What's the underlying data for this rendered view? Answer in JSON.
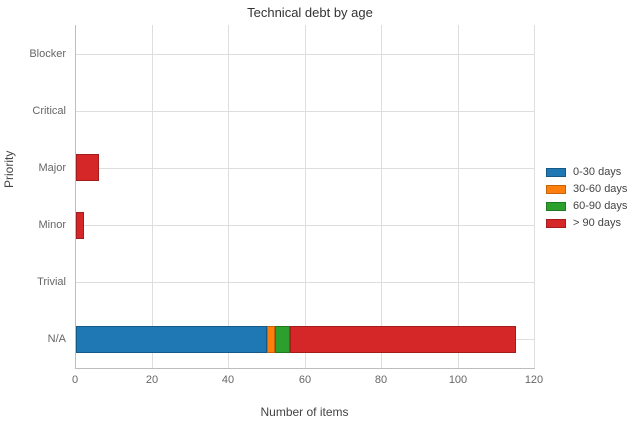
{
  "chart_data": {
    "type": "bar",
    "orientation": "horizontal",
    "stacked": true,
    "title": "Technical debt by age",
    "xlabel": "Number of items",
    "ylabel": "Priority",
    "categories": [
      "Blocker",
      "Critical",
      "Major",
      "Minor",
      "Trivial",
      "N/A"
    ],
    "series": [
      {
        "name": "0-30 days",
        "color": "#1f77b4",
        "border_color": "#155a87",
        "values": [
          0,
          0,
          0,
          0,
          0,
          50
        ]
      },
      {
        "name": "30-60 days",
        "color": "#ff7f0e",
        "border_color": "#c96309",
        "values": [
          0,
          0,
          0,
          0,
          0,
          2
        ]
      },
      {
        "name": "60-90 days",
        "color": "#2ca02c",
        "border_color": "#1f7a1f",
        "values": [
          0,
          0,
          0,
          0,
          0,
          4
        ]
      },
      {
        "name": "> 90 days",
        "color": "#d62728",
        "border_color": "#a31d1e",
        "values": [
          0,
          0,
          6,
          2,
          0,
          59
        ]
      }
    ],
    "xlim": [
      0,
      120
    ],
    "xticks": [
      0,
      20,
      40,
      60,
      80,
      100,
      120
    ],
    "grid": true,
    "legend_position": "right-center",
    "colors": {
      "grid": "#dedede",
      "axis": "#bdbdbd",
      "tick_text": "#666666",
      "label_text": "#444444",
      "title_text": "#333333",
      "background": "#ffffff"
    }
  }
}
